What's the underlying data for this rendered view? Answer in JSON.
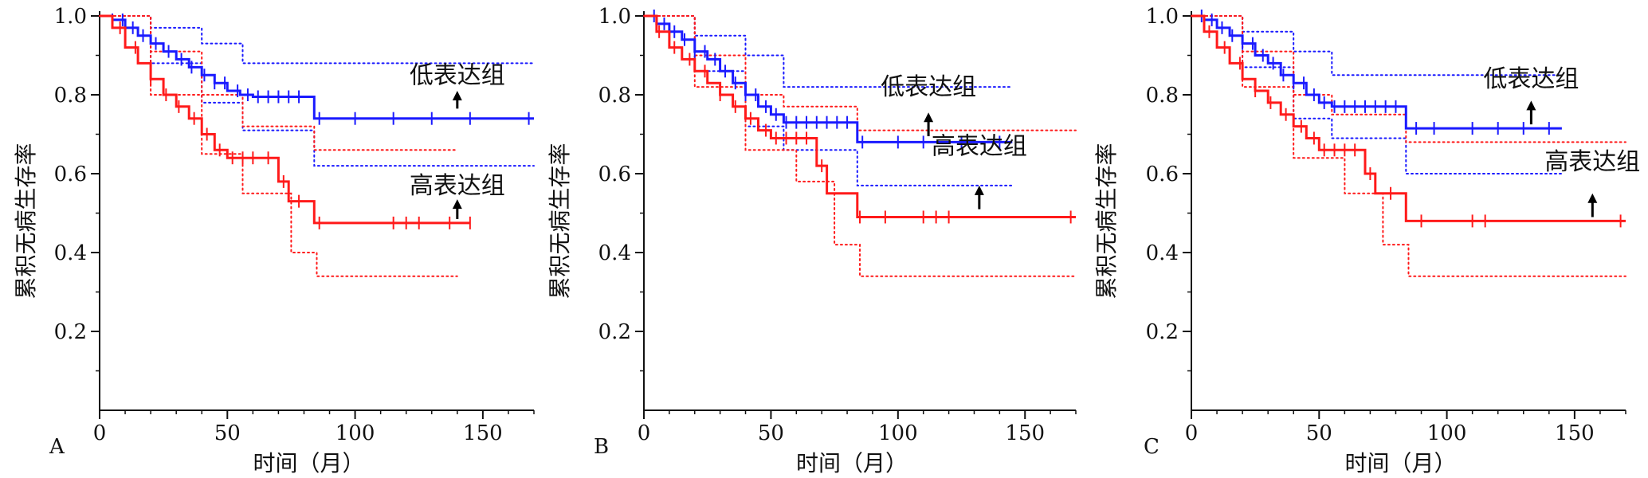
{
  "chart_data": [
    {
      "type": "line",
      "panel_label": "A",
      "xlabel": "时间（月）",
      "ylabel": "累积无病生存率",
      "xlim": [
        0,
        170
      ],
      "ylim": [
        0,
        1.0
      ],
      "x_ticks": [
        "0",
        "50",
        "100",
        "150"
      ],
      "y_ticks": [
        "0.2",
        "0.4",
        "0.6",
        "0.8",
        "1.0"
      ],
      "colors": {
        "low": "#1a1aff",
        "high": "#ff1a1a"
      },
      "series": [
        {
          "name": "低表达组",
          "group": "low",
          "style": "solid",
          "x": [
            0,
            5,
            10,
            15,
            20,
            25,
            30,
            35,
            40,
            45,
            50,
            55,
            60,
            84,
            170
          ],
          "y": [
            1.0,
            0.99,
            0.97,
            0.95,
            0.93,
            0.91,
            0.89,
            0.87,
            0.85,
            0.83,
            0.81,
            0.8,
            0.795,
            0.74,
            0.74
          ],
          "censor_x": [
            5,
            9,
            13,
            17,
            22,
            27,
            32,
            36,
            41,
            45,
            49,
            54,
            58,
            62,
            66,
            70,
            74,
            78,
            86,
            100,
            115,
            130,
            145,
            168
          ]
        },
        {
          "name": "高表达组",
          "group": "high",
          "style": "solid",
          "x": [
            0,
            5,
            10,
            15,
            20,
            25,
            30,
            35,
            40,
            45,
            50,
            70,
            74,
            84,
            145
          ],
          "y": [
            1.0,
            0.97,
            0.92,
            0.88,
            0.84,
            0.8,
            0.77,
            0.74,
            0.7,
            0.66,
            0.64,
            0.58,
            0.53,
            0.475,
            0.475
          ],
          "censor_x": [
            8,
            14,
            20,
            26,
            31,
            37,
            42,
            47,
            52,
            56,
            60,
            66,
            72,
            78,
            86,
            115,
            120,
            125,
            137,
            145
          ]
        },
        {
          "name": "",
          "group": "low",
          "style": "dotted",
          "x": [
            0,
            20,
            40,
            56,
            170
          ],
          "y": [
            1.0,
            0.97,
            0.93,
            0.88,
            0.88
          ]
        },
        {
          "name": "",
          "group": "low",
          "style": "dotted",
          "x": [
            0,
            20,
            40,
            56,
            84,
            170
          ],
          "y": [
            1.0,
            0.88,
            0.78,
            0.71,
            0.62,
            0.62
          ]
        },
        {
          "name": "",
          "group": "high",
          "style": "dotted",
          "x": [
            0,
            20,
            40,
            56,
            84,
            140
          ],
          "y": [
            1.0,
            0.91,
            0.8,
            0.72,
            0.66,
            0.66
          ]
        },
        {
          "name": "",
          "group": "high",
          "style": "dotted",
          "x": [
            0,
            20,
            40,
            56,
            75,
            85,
            140
          ],
          "y": [
            1.0,
            0.8,
            0.65,
            0.55,
            0.4,
            0.34,
            0.34
          ]
        }
      ],
      "annotations": [
        {
          "text": "低表达组",
          "group": "low",
          "x": 140,
          "y": 0.85,
          "arrow_from": 0.765,
          "arrow_to": 0.81
        },
        {
          "text": "高表达组",
          "group": "high",
          "x": 140,
          "y": 0.57,
          "arrow_from": 0.485,
          "arrow_to": 0.535
        }
      ]
    },
    {
      "type": "line",
      "panel_label": "B",
      "xlabel": "时间（月）",
      "ylabel": "累积无病生存率",
      "xlim": [
        0,
        170
      ],
      "ylim": [
        0,
        1.0
      ],
      "x_ticks": [
        "0",
        "50",
        "100",
        "150"
      ],
      "y_ticks": [
        "0.2",
        "0.4",
        "0.6",
        "0.8",
        "1.0"
      ],
      "colors": {
        "low": "#1a1aff",
        "high": "#ff1a1a"
      },
      "series": [
        {
          "name": "低表达组",
          "group": "low",
          "style": "solid",
          "x": [
            0,
            5,
            10,
            15,
            20,
            25,
            30,
            35,
            40,
            45,
            50,
            55,
            83,
            84,
            145
          ],
          "y": [
            1.0,
            0.98,
            0.96,
            0.94,
            0.91,
            0.89,
            0.86,
            0.83,
            0.8,
            0.77,
            0.75,
            0.73,
            0.73,
            0.68,
            0.68
          ],
          "censor_x": [
            4,
            8,
            12,
            16,
            20,
            24,
            28,
            32,
            36,
            40,
            44,
            48,
            52,
            56,
            60,
            64,
            68,
            72,
            76,
            80,
            86,
            100,
            110,
            125,
            140
          ]
        },
        {
          "name": "高表达组",
          "group": "high",
          "style": "solid",
          "x": [
            0,
            5,
            10,
            15,
            20,
            25,
            30,
            35,
            40,
            45,
            50,
            68,
            72,
            76,
            84,
            170
          ],
          "y": [
            1.0,
            0.96,
            0.92,
            0.89,
            0.86,
            0.83,
            0.8,
            0.77,
            0.74,
            0.71,
            0.69,
            0.62,
            0.55,
            0.55,
            0.49,
            0.49
          ],
          "censor_x": [
            6,
            12,
            18,
            24,
            30,
            36,
            42,
            48,
            52,
            56,
            60,
            64,
            70,
            85,
            95,
            110,
            115,
            120,
            168
          ]
        },
        {
          "name": "",
          "group": "low",
          "style": "dotted",
          "x": [
            0,
            20,
            40,
            55,
            145
          ],
          "y": [
            1.0,
            0.95,
            0.9,
            0.82,
            0.82
          ]
        },
        {
          "name": "",
          "group": "low",
          "style": "dotted",
          "x": [
            0,
            20,
            40,
            55,
            84,
            145
          ],
          "y": [
            1.0,
            0.86,
            0.72,
            0.66,
            0.57,
            0.57
          ]
        },
        {
          "name": "",
          "group": "high",
          "style": "dotted",
          "x": [
            0,
            20,
            40,
            55,
            84,
            170
          ],
          "y": [
            1.0,
            0.9,
            0.8,
            0.77,
            0.71,
            0.71
          ]
        },
        {
          "name": "",
          "group": "high",
          "style": "dotted",
          "x": [
            0,
            20,
            40,
            60,
            75,
            85,
            170
          ],
          "y": [
            1.0,
            0.82,
            0.66,
            0.58,
            0.42,
            0.34,
            0.34
          ]
        }
      ],
      "annotations": [
        {
          "text": "低表达组",
          "group": "low",
          "x": 112,
          "y": 0.82,
          "arrow_from": 0.695,
          "arrow_to": 0.755
        },
        {
          "text": "高表达组",
          "group": "high",
          "x": 132,
          "y": 0.67,
          "arrow_from": 0.51,
          "arrow_to": 0.57
        }
      ]
    },
    {
      "type": "line",
      "panel_label": "C",
      "xlabel": "时间（月）",
      "ylabel": "累积无病生存率",
      "xlim": [
        0,
        170
      ],
      "ylim": [
        0,
        1.0
      ],
      "x_ticks": [
        "0",
        "50",
        "100",
        "150"
      ],
      "y_ticks": [
        "0.2",
        "0.4",
        "0.6",
        "0.8",
        "1.0"
      ],
      "colors": {
        "low": "#1a1aff",
        "high": "#ff1a1a"
      },
      "series": [
        {
          "name": "低表达组",
          "group": "low",
          "style": "solid",
          "x": [
            0,
            5,
            10,
            15,
            20,
            25,
            30,
            35,
            40,
            45,
            50,
            55,
            83,
            84,
            145
          ],
          "y": [
            1.0,
            0.99,
            0.97,
            0.95,
            0.93,
            0.9,
            0.88,
            0.85,
            0.83,
            0.8,
            0.78,
            0.77,
            0.77,
            0.715,
            0.715
          ],
          "censor_x": [
            4,
            8,
            12,
            16,
            20,
            24,
            28,
            32,
            36,
            40,
            44,
            48,
            52,
            56,
            60,
            64,
            68,
            72,
            76,
            80,
            88,
            95,
            110,
            120,
            130,
            140
          ]
        },
        {
          "name": "高表达组",
          "group": "high",
          "style": "solid",
          "x": [
            0,
            5,
            10,
            15,
            20,
            25,
            30,
            35,
            40,
            45,
            50,
            68,
            72,
            76,
            84,
            170
          ],
          "y": [
            1.0,
            0.96,
            0.92,
            0.88,
            0.84,
            0.81,
            0.78,
            0.75,
            0.72,
            0.69,
            0.66,
            0.6,
            0.55,
            0.55,
            0.48,
            0.48
          ],
          "censor_x": [
            7,
            13,
            19,
            25,
            31,
            37,
            43,
            48,
            52,
            56,
            60,
            64,
            70,
            78,
            90,
            110,
            115,
            168
          ]
        },
        {
          "name": "",
          "group": "low",
          "style": "dotted",
          "x": [
            0,
            20,
            40,
            55,
            145
          ],
          "y": [
            1.0,
            0.96,
            0.91,
            0.85,
            0.85
          ]
        },
        {
          "name": "",
          "group": "low",
          "style": "dotted",
          "x": [
            0,
            20,
            40,
            55,
            84,
            145
          ],
          "y": [
            1.0,
            0.87,
            0.74,
            0.69,
            0.6,
            0.6
          ]
        },
        {
          "name": "",
          "group": "high",
          "style": "dotted",
          "x": [
            0,
            20,
            40,
            55,
            84,
            170
          ],
          "y": [
            1.0,
            0.91,
            0.8,
            0.75,
            0.68,
            0.68
          ]
        },
        {
          "name": "",
          "group": "high",
          "style": "dotted",
          "x": [
            0,
            20,
            40,
            60,
            75,
            85,
            170
          ],
          "y": [
            1.0,
            0.82,
            0.64,
            0.55,
            0.42,
            0.34,
            0.34
          ]
        }
      ],
      "annotations": [
        {
          "text": "低表达组",
          "group": "low",
          "x": 133,
          "y": 0.84,
          "arrow_from": 0.725,
          "arrow_to": 0.785
        },
        {
          "text": "高表达组",
          "group": "high",
          "x": 157,
          "y": 0.63,
          "arrow_from": 0.49,
          "arrow_to": 0.55
        }
      ]
    }
  ]
}
